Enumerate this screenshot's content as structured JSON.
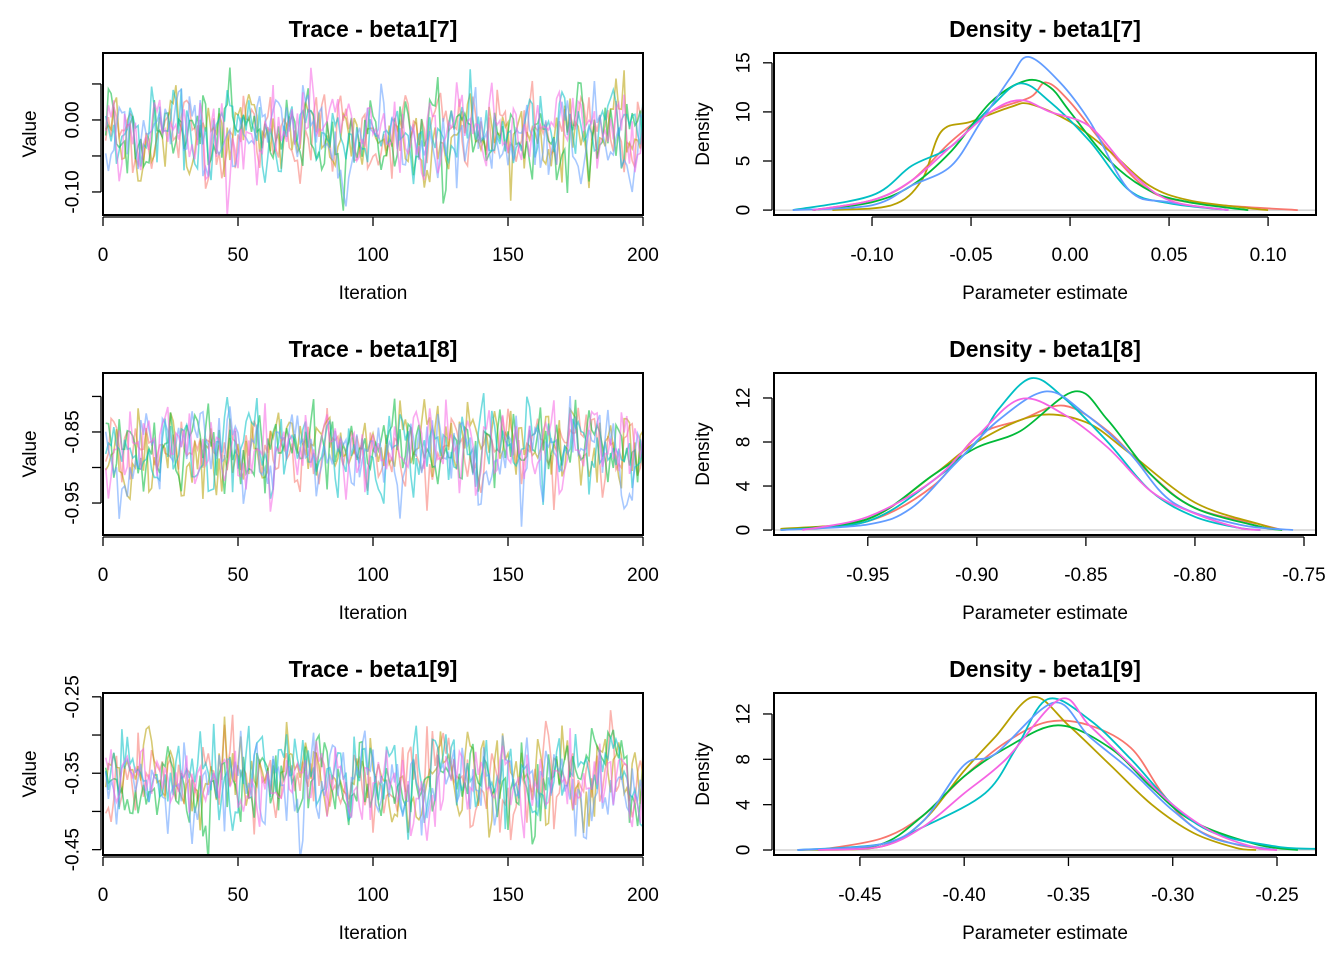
{
  "chain_colors": [
    "#F8766D",
    "#B79F00",
    "#00BA38",
    "#00BFC4",
    "#619CFF",
    "#F564E3"
  ],
  "chart_data": [
    {
      "type": "line",
      "title": "Trace - beta1[7]",
      "xlabel": "Iteration",
      "ylabel": "Value",
      "xlim": [
        0,
        200
      ],
      "ylim": [
        -0.132,
        0.093
      ],
      "xticks": [
        0,
        50,
        100,
        150,
        200
      ],
      "xtick_labels": [
        "0",
        "50",
        "100",
        "150",
        "200"
      ],
      "yticks": [
        0.05,
        0,
        -0.05,
        -0.1
      ],
      "ytick_labels": [
        "",
        "0.00",
        "",
        "-0.10"
      ],
      "chains": 6,
      "iterations": 200,
      "chain_mean": -0.02,
      "chain_sd": 0.03
    },
    {
      "type": "line",
      "title": "Density - beta1[7]",
      "xlabel": "Parameter estimate",
      "ylabel": "Density",
      "xlim": [
        -0.1495,
        0.1242
      ],
      "ylim": [
        -0.5,
        16
      ],
      "xticks": [
        -0.1,
        -0.05,
        0,
        0.05,
        0.1
      ],
      "xtick_labels": [
        "-0.10",
        "-0.05",
        "0.00",
        "0.05",
        "0.10"
      ],
      "yticks": [
        0,
        5,
        10,
        15
      ],
      "ytick_labels": [
        "0",
        "5",
        "10",
        "15"
      ],
      "series": [
        {
          "points": [
            [
              -0.13,
              0
            ],
            [
              -0.1,
              1
            ],
            [
              -0.08,
              3
            ],
            [
              -0.06,
              7
            ],
            [
              -0.04,
              10
            ],
            [
              -0.02,
              11.5
            ],
            [
              -0.012,
              13
            ],
            [
              0,
              11
            ],
            [
              0.02,
              6
            ],
            [
              0.04,
              2
            ],
            [
              0.06,
              0.8
            ],
            [
              0.09,
              0.3
            ],
            [
              0.115,
              0
            ]
          ]
        },
        {
          "points": [
            [
              -0.12,
              0
            ],
            [
              -0.09,
              0.5
            ],
            [
              -0.075,
              3
            ],
            [
              -0.065,
              8
            ],
            [
              -0.05,
              9
            ],
            [
              -0.03,
              10.5
            ],
            [
              -0.02,
              10.8
            ],
            [
              0,
              9
            ],
            [
              0.02,
              6
            ],
            [
              0.04,
              2.5
            ],
            [
              0.06,
              1
            ],
            [
              0.09,
              0.2
            ],
            [
              0.1,
              0
            ]
          ]
        },
        {
          "points": [
            [
              -0.13,
              0
            ],
            [
              -0.1,
              0.8
            ],
            [
              -0.08,
              2.5
            ],
            [
              -0.06,
              6
            ],
            [
              -0.04,
              11
            ],
            [
              -0.022,
              13.2
            ],
            [
              -0.01,
              12.5
            ],
            [
              0,
              10
            ],
            [
              0.02,
              5
            ],
            [
              0.04,
              2
            ],
            [
              0.06,
              0.8
            ],
            [
              0.09,
              0
            ]
          ]
        },
        {
          "points": [
            [
              -0.14,
              0
            ],
            [
              -0.1,
              1.5
            ],
            [
              -0.08,
              4.5
            ],
            [
              -0.06,
              6.5
            ],
            [
              -0.04,
              10.5
            ],
            [
              -0.025,
              12.9
            ],
            [
              -0.01,
              11
            ],
            [
              0.01,
              7
            ],
            [
              0.03,
              2
            ],
            [
              0.05,
              0.7
            ],
            [
              0.08,
              0
            ]
          ]
        },
        {
          "points": [
            [
              -0.14,
              0
            ],
            [
              -0.1,
              0.5
            ],
            [
              -0.08,
              2.5
            ],
            [
              -0.06,
              4.5
            ],
            [
              -0.045,
              9
            ],
            [
              -0.03,
              13.5
            ],
            [
              -0.021,
              15.6
            ],
            [
              -0.005,
              13
            ],
            [
              0.01,
              9
            ],
            [
              0.03,
              2
            ],
            [
              0.05,
              0.8
            ],
            [
              0.08,
              0
            ]
          ]
        },
        {
          "points": [
            [
              -0.13,
              0
            ],
            [
              -0.1,
              1
            ],
            [
              -0.08,
              3
            ],
            [
              -0.06,
              6.5
            ],
            [
              -0.04,
              10
            ],
            [
              -0.025,
              11.2
            ],
            [
              -0.01,
              10
            ],
            [
              0.01,
              8.5
            ],
            [
              0.03,
              4
            ],
            [
              0.05,
              1
            ],
            [
              0.08,
              0
            ]
          ]
        }
      ]
    },
    {
      "type": "line",
      "title": "Trace - beta1[8]",
      "xlabel": "Iteration",
      "ylabel": "Value",
      "xlim": [
        0,
        200
      ],
      "ylim": [
        -0.995,
        -0.767
      ],
      "xticks": [
        0,
        50,
        100,
        150,
        200
      ],
      "xtick_labels": [
        "0",
        "50",
        "100",
        "150",
        "200"
      ],
      "yticks": [
        -0.8,
        -0.85,
        -0.9,
        -0.95
      ],
      "ytick_labels": [
        "",
        "-0.85",
        "",
        "-0.95"
      ],
      "chains": 6,
      "iterations": 200,
      "chain_mean": -0.875,
      "chain_sd": 0.03
    },
    {
      "type": "line",
      "title": "Density - beta1[8]",
      "xlabel": "Parameter estimate",
      "ylabel": "Density",
      "xlim": [
        -0.993,
        -0.7445
      ],
      "ylim": [
        -0.45,
        14.27
      ],
      "xticks": [
        -0.95,
        -0.9,
        -0.85,
        -0.8,
        -0.75
      ],
      "xtick_labels": [
        "-0.95",
        "-0.90",
        "-0.85",
        "-0.80",
        "-0.75"
      ],
      "yticks": [
        0,
        4,
        8,
        12
      ],
      "ytick_labels": [
        "0",
        "4",
        "8",
        "12"
      ],
      "series": [
        {
          "points": [
            [
              -0.99,
              0
            ],
            [
              -0.95,
              0.8
            ],
            [
              -0.92,
              4
            ],
            [
              -0.9,
              8.5
            ],
            [
              -0.88,
              10
            ],
            [
              -0.86,
              11.3
            ],
            [
              -0.84,
              9
            ],
            [
              -0.82,
              5
            ],
            [
              -0.8,
              2
            ],
            [
              -0.77,
              0.5
            ],
            [
              -0.76,
              0
            ]
          ]
        },
        {
          "points": [
            [
              -0.99,
              0.1
            ],
            [
              -0.95,
              1
            ],
            [
              -0.92,
              5
            ],
            [
              -0.9,
              8
            ],
            [
              -0.873,
              10.4
            ],
            [
              -0.85,
              9.8
            ],
            [
              -0.83,
              7
            ],
            [
              -0.8,
              2.5
            ],
            [
              -0.77,
              0.5
            ],
            [
              -0.76,
              0
            ]
          ]
        },
        {
          "points": [
            [
              -0.99,
              0
            ],
            [
              -0.95,
              1
            ],
            [
              -0.92,
              5
            ],
            [
              -0.9,
              7.5
            ],
            [
              -0.88,
              9
            ],
            [
              -0.855,
              12.6
            ],
            [
              -0.84,
              10
            ],
            [
              -0.82,
              5
            ],
            [
              -0.8,
              2
            ],
            [
              -0.77,
              0.3
            ],
            [
              -0.76,
              0
            ]
          ]
        },
        {
          "points": [
            [
              -0.99,
              0
            ],
            [
              -0.95,
              0.8
            ],
            [
              -0.92,
              4.5
            ],
            [
              -0.9,
              8
            ],
            [
              -0.89,
              11
            ],
            [
              -0.875,
              13.8
            ],
            [
              -0.86,
              12
            ],
            [
              -0.84,
              8
            ],
            [
              -0.82,
              3.5
            ],
            [
              -0.8,
              1.2
            ],
            [
              -0.78,
              0.2
            ],
            [
              -0.77,
              0
            ]
          ]
        },
        {
          "points": [
            [
              -0.99,
              0
            ],
            [
              -0.95,
              0.5
            ],
            [
              -0.93,
              2
            ],
            [
              -0.91,
              6
            ],
            [
              -0.89,
              10
            ],
            [
              -0.868,
              12.6
            ],
            [
              -0.85,
              10.5
            ],
            [
              -0.83,
              7
            ],
            [
              -0.81,
              2.5
            ],
            [
              -0.78,
              0.5
            ],
            [
              -0.755,
              0
            ]
          ]
        },
        {
          "points": [
            [
              -0.98,
              0
            ],
            [
              -0.95,
              1.2
            ],
            [
              -0.92,
              4.5
            ],
            [
              -0.9,
              8.5
            ],
            [
              -0.88,
              11.9
            ],
            [
              -0.86,
              10.5
            ],
            [
              -0.84,
              7.5
            ],
            [
              -0.82,
              3.5
            ],
            [
              -0.8,
              1.5
            ],
            [
              -0.78,
              0.2
            ],
            [
              -0.77,
              0
            ]
          ]
        }
      ]
    },
    {
      "type": "line",
      "title": "Trace - beta1[9]",
      "xlabel": "Iteration",
      "ylabel": "Value",
      "xlim": [
        0,
        200
      ],
      "ylim": [
        -0.457,
        -0.245
      ],
      "xticks": [
        0,
        50,
        100,
        150,
        200
      ],
      "xtick_labels": [
        "0",
        "50",
        "100",
        "150",
        "200"
      ],
      "yticks": [
        -0.25,
        -0.3,
        -0.35,
        -0.4,
        -0.45
      ],
      "ytick_labels": [
        "-0.25",
        "",
        "-0.35",
        "",
        "-0.45"
      ],
      "chains": 6,
      "iterations": 200,
      "chain_mean": -0.36,
      "chain_sd": 0.03
    },
    {
      "type": "line",
      "title": "Density - beta1[9]",
      "xlabel": "Parameter estimate",
      "ylabel": "Density",
      "xlim": [
        -0.4912,
        -0.2313
      ],
      "ylim": [
        -0.44,
        13.85
      ],
      "xticks": [
        -0.45,
        -0.4,
        -0.35,
        -0.3,
        -0.25
      ],
      "xtick_labels": [
        "-0.45",
        "-0.40",
        "-0.35",
        "-0.30",
        "-0.25"
      ],
      "yticks": [
        0,
        4,
        8,
        12
      ],
      "ytick_labels": [
        "0",
        "4",
        "8",
        "12"
      ],
      "series": [
        {
          "points": [
            [
              -0.47,
              0
            ],
            [
              -0.44,
              1
            ],
            [
              -0.42,
              3
            ],
            [
              -0.4,
              6.5
            ],
            [
              -0.38,
              9.5
            ],
            [
              -0.36,
              11.3
            ],
            [
              -0.34,
              11
            ],
            [
              -0.32,
              9
            ],
            [
              -0.305,
              5
            ],
            [
              -0.29,
              2
            ],
            [
              -0.27,
              0.5
            ],
            [
              -0.25,
              0
            ]
          ]
        },
        {
          "points": [
            [
              -0.48,
              0
            ],
            [
              -0.44,
              0.3
            ],
            [
              -0.42,
              2.5
            ],
            [
              -0.4,
              7
            ],
            [
              -0.385,
              10
            ],
            [
              -0.367,
              13.5
            ],
            [
              -0.35,
              11
            ],
            [
              -0.33,
              7.5
            ],
            [
              -0.31,
              4
            ],
            [
              -0.29,
              1.5
            ],
            [
              -0.27,
              0.2
            ],
            [
              -0.26,
              0
            ]
          ]
        },
        {
          "points": [
            [
              -0.47,
              0
            ],
            [
              -0.44,
              0.5
            ],
            [
              -0.42,
              3
            ],
            [
              -0.4,
              6.5
            ],
            [
              -0.38,
              9
            ],
            [
              -0.355,
              11
            ],
            [
              -0.33,
              9
            ],
            [
              -0.31,
              5.5
            ],
            [
              -0.29,
              2.5
            ],
            [
              -0.26,
              0.5
            ],
            [
              -0.24,
              0
            ]
          ]
        },
        {
          "points": [
            [
              -0.48,
              0
            ],
            [
              -0.44,
              0.5
            ],
            [
              -0.42,
              2
            ],
            [
              -0.39,
              5
            ],
            [
              -0.375,
              9
            ],
            [
              -0.36,
              13.3
            ],
            [
              -0.34,
              11.5
            ],
            [
              -0.32,
              8
            ],
            [
              -0.3,
              4
            ],
            [
              -0.28,
              1.5
            ],
            [
              -0.25,
              0.3
            ],
            [
              -0.23,
              0.1
            ]
          ]
        },
        {
          "points": [
            [
              -0.48,
              0
            ],
            [
              -0.44,
              0.5
            ],
            [
              -0.42,
              2.5
            ],
            [
              -0.4,
              7.5
            ],
            [
              -0.385,
              8.5
            ],
            [
              -0.357,
              13
            ],
            [
              -0.34,
              10
            ],
            [
              -0.32,
              7
            ],
            [
              -0.3,
              3.5
            ],
            [
              -0.28,
              1
            ],
            [
              -0.25,
              0
            ]
          ]
        },
        {
          "points": [
            [
              -0.47,
              0
            ],
            [
              -0.44,
              0.3
            ],
            [
              -0.42,
              2
            ],
            [
              -0.4,
              5
            ],
            [
              -0.38,
              8
            ],
            [
              -0.354,
              13.3
            ],
            [
              -0.34,
              11
            ],
            [
              -0.32,
              7.5
            ],
            [
              -0.3,
              4
            ],
            [
              -0.28,
              1.5
            ],
            [
              -0.26,
              0.2
            ],
            [
              -0.25,
              0
            ]
          ]
        }
      ]
    }
  ]
}
